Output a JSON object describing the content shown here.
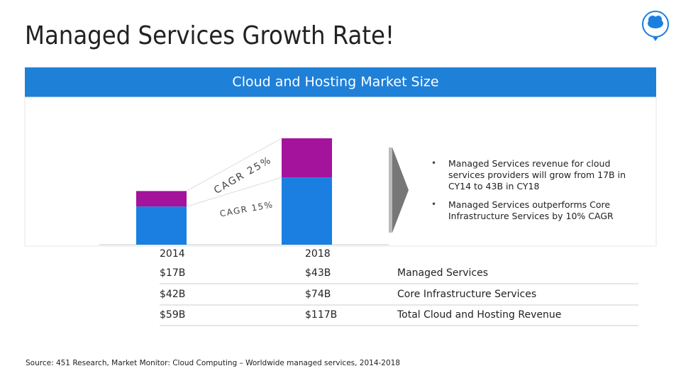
{
  "title": "Managed Services Growth Rate!",
  "chart_data": {
    "type": "stacked-bar",
    "title": "Cloud and Hosting Market Size",
    "categories": [
      "2014",
      "2018"
    ],
    "series": [
      {
        "color": "#1a7fe0",
        "values": [
          42,
          74
        ]
      },
      {
        "color": "#a3139c",
        "values": [
          17,
          43
        ]
      }
    ],
    "ylim": [
      0,
      117
    ],
    "annotations": [
      "CAGR 25%",
      "CAGR 15%"
    ]
  },
  "table": {
    "rows": [
      [
        "$17B",
        "$43B",
        "Managed Services"
      ],
      [
        "$42B",
        "$74B",
        "Core Infrastructure Services"
      ],
      [
        "$59B",
        "$117B",
        "Total Cloud and Hosting Revenue"
      ]
    ]
  },
  "bullets": [
    "Managed Services revenue for cloud services providers will grow from 17B in CY14 to 43B in CY18",
    "Managed Services outperforms Core Infrastructure Services by 10% CAGR"
  ],
  "source": "Source: 451 Research, Market Monitor: Cloud Computing – Worldwide managed services, 2014-2018"
}
